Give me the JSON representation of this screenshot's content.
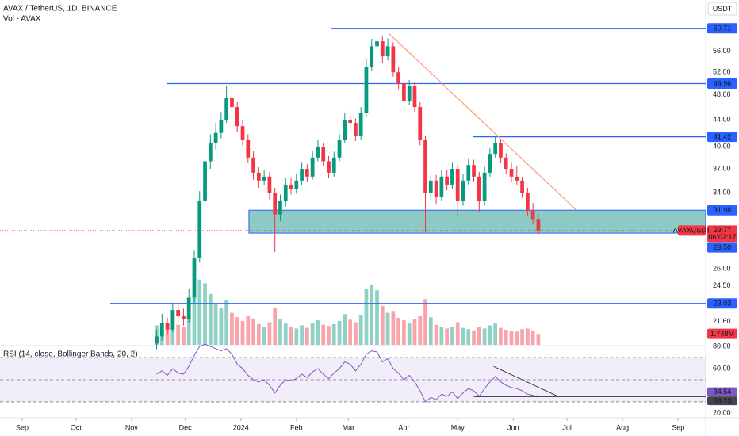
{
  "chart_data": {
    "type": "candlestick",
    "title": "AVAX / TetherUS, 1D, BINANCE",
    "currency": "USDT",
    "volume_name": "Vol - AVAX",
    "rsi_name": "RSI (14, close, Bollinger Bands, 20, 2)",
    "log_scale": true,
    "xlim": [
      -12.4,
      381.4
    ],
    "xticks": [
      {
        "value": 0,
        "label": "Sep"
      },
      {
        "value": 30,
        "label": "Oct"
      },
      {
        "value": 61,
        "label": "Nov"
      },
      {
        "value": 91,
        "label": "Dec"
      },
      {
        "value": 122,
        "label": "2024"
      },
      {
        "value": 153,
        "label": "Feb"
      },
      {
        "value": 182,
        "label": "Mar"
      },
      {
        "value": 213,
        "label": "Apr"
      },
      {
        "value": 243,
        "label": "May"
      },
      {
        "value": 274,
        "label": "Jun"
      },
      {
        "value": 304,
        "label": "Jul"
      },
      {
        "value": 335,
        "label": "Aug"
      },
      {
        "value": 366,
        "label": "Sep"
      }
    ],
    "ylim": [
      19.9,
      63.8
    ],
    "yticks": [
      {
        "value": 56,
        "label": "56.00"
      },
      {
        "value": 52,
        "label": "52.00"
      },
      {
        "value": 48,
        "label": "48.00"
      },
      {
        "value": 44,
        "label": "44.00"
      },
      {
        "value": 40,
        "label": "40.00"
      },
      {
        "value": 37,
        "label": "37.00"
      },
      {
        "value": 34,
        "label": "34.00"
      },
      {
        "value": 26,
        "label": "26.00"
      },
      {
        "value": 24.5,
        "label": "24.50"
      },
      {
        "value": 21.6,
        "label": "21.60"
      }
    ],
    "up_color": "#089981",
    "down_color": "#f23645",
    "x": [
      75,
      78,
      81,
      84,
      87,
      90,
      93,
      96,
      99,
      102,
      105,
      108,
      111,
      114,
      117,
      120,
      123,
      126,
      129,
      132,
      135,
      138,
      141,
      144,
      147,
      150,
      153,
      156,
      159,
      162,
      165,
      168,
      171,
      174,
      177,
      180,
      183,
      186,
      189,
      192,
      195,
      198,
      201,
      204,
      207,
      210,
      213,
      216,
      219,
      222,
      225,
      228,
      231,
      234,
      237,
      240,
      243,
      246,
      249,
      252,
      255,
      258,
      261,
      264,
      267,
      270,
      273,
      276,
      279,
      282,
      285,
      288
    ],
    "open": [
      20.0,
      20.5,
      21.5,
      21.0,
      22.5,
      22.0,
      21.8,
      23.5,
      27.0,
      33.0,
      38.0,
      40.5,
      42.0,
      44.0,
      47.5,
      46.0,
      43.0,
      41.0,
      38.5,
      36.5,
      35.5,
      36.0,
      34.0,
      31.5,
      33.0,
      35.0,
      34.5,
      35.5,
      37.0,
      36.0,
      38.5,
      40.0,
      38.0,
      36.5,
      38.5,
      41.0,
      44.0,
      43.5,
      41.5,
      45.0,
      53.0,
      57.0,
      58.0,
      55.0,
      57.0,
      52.0,
      50.0,
      47.0,
      49.5,
      46.0,
      41.0,
      34.0,
      35.5,
      33.5,
      36.0,
      35.0,
      37.0,
      33.0,
      35.5,
      37.5,
      36.0,
      33.0,
      36.5,
      39.0,
      40.5,
      38.5,
      37.0,
      36.0,
      35.5,
      34.0,
      32.0,
      31.0
    ],
    "high": [
      21.0,
      22.2,
      21.9,
      23.1,
      23.0,
      22.6,
      24.2,
      27.8,
      34.2,
      39.0,
      41.8,
      43.5,
      45.2,
      49.5,
      48.6,
      46.8,
      43.9,
      41.8,
      39.4,
      37.2,
      36.9,
      36.6,
      34.6,
      33.8,
      35.8,
      35.9,
      36.3,
      37.9,
      37.6,
      39.4,
      41.0,
      40.6,
      38.7,
      39.3,
      41.8,
      45.0,
      45.5,
      44.2,
      46.0,
      54.5,
      58.5,
      63.5,
      59.2,
      58.6,
      57.8,
      53.0,
      50.8,
      50.6,
      50.2,
      46.8,
      41.6,
      36.4,
      36.2,
      36.9,
      36.8,
      37.9,
      37.6,
      36.3,
      38.4,
      38.2,
      36.6,
      37.3,
      39.8,
      41.6,
      41.2,
      39.1,
      37.9,
      37.4,
      36.0,
      34.6,
      32.8,
      31.6
    ],
    "low": [
      19.6,
      20.2,
      20.6,
      20.8,
      21.6,
      21.3,
      21.5,
      23.1,
      26.6,
      32.5,
      37.0,
      39.6,
      41.2,
      43.5,
      45.1,
      42.2,
      40.2,
      37.8,
      35.6,
      34.6,
      34.9,
      33.2,
      27.6,
      30.8,
      32.4,
      33.8,
      33.9,
      35.0,
      35.3,
      35.6,
      38.0,
      37.4,
      35.8,
      36.0,
      38.0,
      40.5,
      42.8,
      40.8,
      41.0,
      44.5,
      52.2,
      56.0,
      53.8,
      54.2,
      51.2,
      49.0,
      46.1,
      46.3,
      45.2,
      40.2,
      29.6,
      33.2,
      32.7,
      33.0,
      34.3,
      34.5,
      31.2,
      32.5,
      35.0,
      35.4,
      31.8,
      32.5,
      36.0,
      38.5,
      37.8,
      36.4,
      35.3,
      35.0,
      33.4,
      31.4,
      30.4,
      29.3
    ],
    "close": [
      20.5,
      21.5,
      21.0,
      22.5,
      22.0,
      21.8,
      23.5,
      27.0,
      33.0,
      38.0,
      40.5,
      42.0,
      44.0,
      47.5,
      46.0,
      43.0,
      41.0,
      38.5,
      36.5,
      35.5,
      36.0,
      34.0,
      31.5,
      33.0,
      35.0,
      34.5,
      35.5,
      37.0,
      36.0,
      38.5,
      40.0,
      38.0,
      36.5,
      38.5,
      41.0,
      44.0,
      43.5,
      41.5,
      45.0,
      53.0,
      57.0,
      58.0,
      55.0,
      57.0,
      52.0,
      50.0,
      47.0,
      49.5,
      46.0,
      41.0,
      34.0,
      35.5,
      33.5,
      36.0,
      35.0,
      37.0,
      33.0,
      35.5,
      37.5,
      36.0,
      33.0,
      36.5,
      39.0,
      40.5,
      38.5,
      37.0,
      36.0,
      35.5,
      34.0,
      32.0,
      31.0,
      29.77
    ],
    "volume": [
      3.1,
      3.5,
      2.8,
      3.9,
      3.2,
      2.9,
      4.6,
      7.5,
      10.4,
      9.8,
      8.1,
      6.5,
      5.8,
      7.2,
      5.1,
      4.4,
      3.8,
      4.6,
      4.2,
      3.3,
      2.9,
      3.6,
      5.9,
      4.1,
      3.4,
      2.8,
      2.6,
      3.1,
      2.7,
      3.5,
      3.9,
      3.2,
      3.0,
      3.3,
      3.8,
      4.9,
      4.0,
      3.6,
      4.8,
      8.9,
      9.5,
      8.7,
      6.2,
      5.1,
      5.4,
      4.3,
      3.9,
      3.5,
      4.1,
      4.6,
      7.3,
      4.4,
      3.2,
      2.9,
      2.6,
      2.8,
      3.6,
      2.7,
      2.5,
      2.3,
      2.9,
      2.6,
      3.1,
      3.4,
      2.7,
      2.4,
      2.2,
      2.1,
      2.5,
      2.6,
      2.3,
      1.748
    ],
    "volume_ylim": [
      0,
      12
    ],
    "volume_last_label": "1.748M",
    "symbol_tag": "AVAXUSDT",
    "countdown": "06:02:17",
    "rsi": [
      55,
      58,
      54,
      60,
      56,
      55,
      62,
      72,
      80,
      82,
      80,
      78,
      76,
      78,
      73,
      64,
      60,
      54,
      50,
      48,
      50,
      45,
      38,
      45,
      50,
      49,
      51,
      55,
      52,
      57,
      60,
      55,
      51,
      56,
      60,
      66,
      64,
      58,
      64,
      73,
      76,
      75,
      66,
      69,
      60,
      56,
      50,
      54,
      48,
      40,
      30,
      34,
      32,
      37,
      35,
      39,
      33,
      38,
      42,
      40,
      35,
      42,
      48,
      53,
      48,
      45,
      43,
      42,
      40,
      37,
      36,
      34.54
    ],
    "rsi_color": "#7e57c2",
    "rsi_ma_last": 34.13,
    "rsi_ylim": [
      17.1,
      80
    ],
    "rsi_yticks": [
      {
        "value": 80,
        "label": "80.00"
      },
      {
        "value": 60,
        "label": "60.00"
      },
      {
        "value": 20,
        "label": "20.00"
      }
    ],
    "rsi_levels": [
      70,
      50,
      30
    ],
    "levels": [
      {
        "value": 60.71,
        "start": 172.6
      },
      {
        "value": 49.96,
        "start": 80.5
      },
      {
        "value": 41.42,
        "start": 251.3
      },
      {
        "value": 23.03,
        "start": 49.1
      }
    ],
    "level_color": "#2962ff",
    "zone": {
      "low": {
        "value": 29.5,
        "label": "29.50"
      },
      "high": 31.98,
      "start": 126.5,
      "color": "#00897b"
    },
    "trendline": {
      "x": [
        204.4,
        309.3
      ],
      "y": [
        59.7,
        31.98
      ],
      "color": "#f7a07a"
    },
    "rsi_trendline": {
      "x": [
        263,
        298
      ],
      "y": [
        62,
        35.7
      ]
    },
    "rsi_hline": {
      "start": 252,
      "value": 34.54
    }
  }
}
